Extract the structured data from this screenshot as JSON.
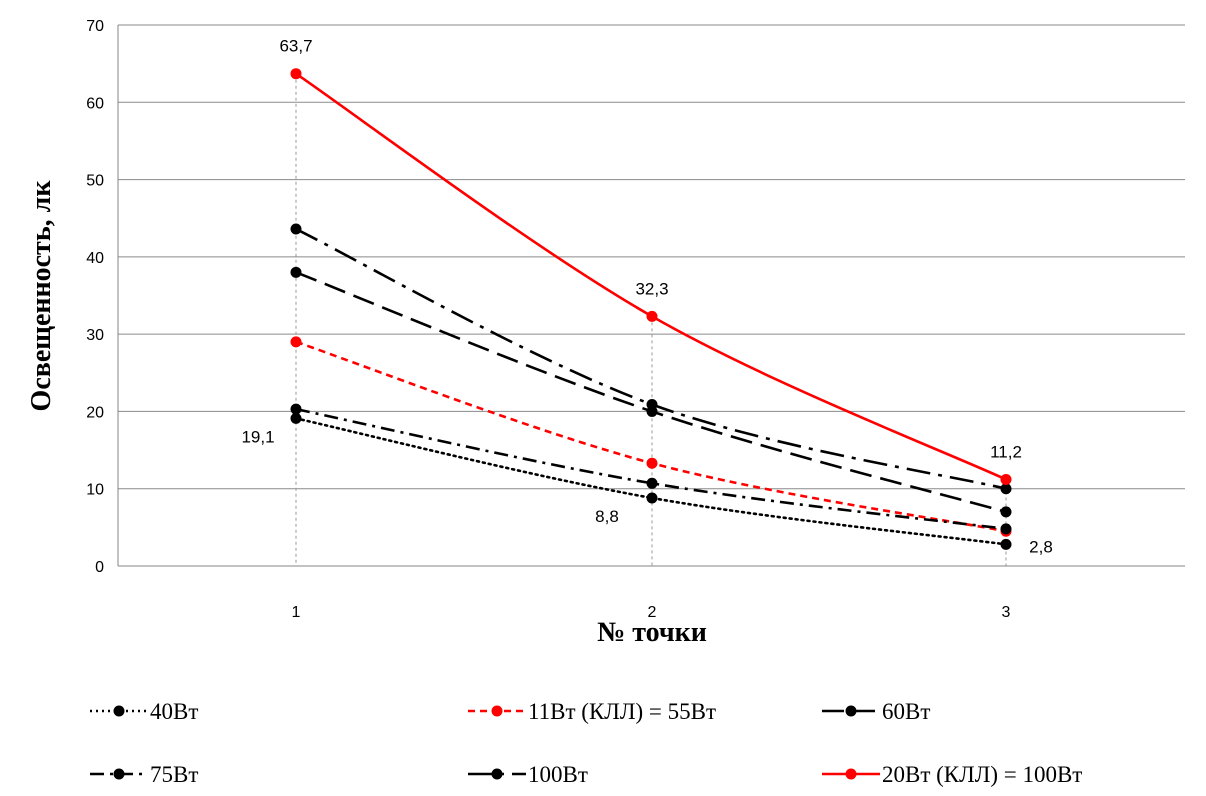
{
  "chart_data": {
    "type": "line",
    "title": "",
    "xlabel": "№  точки",
    "ylabel": "Освещенность,  лк",
    "categories": [
      "1",
      "2",
      "3"
    ],
    "ylim": [
      0,
      70
    ],
    "yticks": [
      0,
      10,
      20,
      30,
      40,
      50,
      60,
      70
    ],
    "grid": true,
    "legend_position": "bottom",
    "series": [
      {
        "name": "40Вт",
        "values": [
          19.1,
          8.8,
          2.8
        ],
        "color": "#000000",
        "dash": "dotted",
        "labels": [
          "19,1",
          "8,8",
          "2,8"
        ]
      },
      {
        "name": "11Вт (КЛЛ) = 55Вт",
        "values": [
          29.0,
          13.3,
          4.5
        ],
        "color": "#ff0000",
        "dash": "dashed"
      },
      {
        "name": "60Вт",
        "values": [
          38.0,
          20.0,
          7.0
        ],
        "color": "#000000",
        "dash": "longdash"
      },
      {
        "name": "75Вт",
        "values": [
          20.3,
          10.7,
          4.8
        ],
        "color": "#000000",
        "dash": "dashdot"
      },
      {
        "name": "100Вт",
        "values": [
          43.6,
          20.9,
          10.0
        ],
        "color": "#000000",
        "dash": "longdashdot"
      },
      {
        "name": "20Вт (КЛЛ) = 100Вт",
        "values": [
          63.7,
          32.3,
          11.2
        ],
        "color": "#ff0000",
        "dash": "solid",
        "labels": [
          "63,7",
          "32,3",
          "11,2"
        ]
      }
    ]
  }
}
